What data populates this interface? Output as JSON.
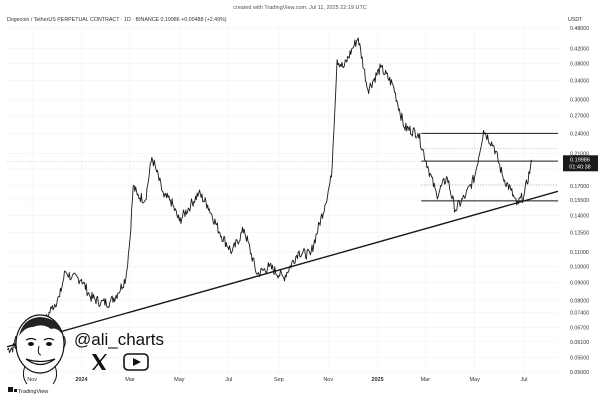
{
  "header": {
    "created_text": "created with TradingView.com, Jul 11, 2025 22:19 UTC",
    "symbol_line": "Dogecoin / TetherUS PERPETUAL CONTRACT · 1D · BINANCE  0.19986  +0.00488 (+2.49%)",
    "currency": "USDT"
  },
  "price_badge": {
    "price": "0.19986",
    "countdown": "01:40:38",
    "color": "#1a1a1a"
  },
  "branding": {
    "handle": "@ali_charts",
    "x_icon": "x-logo-icon",
    "youtube_icon": "youtube-icon",
    "avatar": "cartoon-avatar",
    "tradingview_label": "TradingView"
  },
  "colors": {
    "price_line": "#1a1a1a",
    "trend_line": "#1a1a1a",
    "grid": "#f0f0f0",
    "dashed_level": "#999999"
  },
  "chart_data": {
    "type": "line",
    "title": "Dogecoin / TetherUS PERPETUAL CONTRACT · 1D · BINANCE",
    "y_scale": "log",
    "ylim": [
      0.05,
      0.48
    ],
    "y_ticks": [
      "0.48000",
      "0.42000",
      "0.38000",
      "0.34000",
      "0.30000",
      "0.27000",
      "0.24000",
      "0.21000",
      "0.19000",
      "0.17000",
      "0.15500",
      "0.14000",
      "0.12500",
      "0.11000",
      "0.10000",
      "0.09000",
      "0.08000",
      "0.07400",
      "0.06700",
      "0.06100",
      "0.05500",
      "0.05000"
    ],
    "x_ticks": [
      "Nov",
      "2024",
      "Mar",
      "May",
      "Jul",
      "Sep",
      "Nov",
      "2025",
      "Mar",
      "May",
      "Jul"
    ],
    "x_tick_dates": [
      "2023-11-01",
      "2024-01-01",
      "2024-03-01",
      "2024-05-01",
      "2024-07-01",
      "2024-09-01",
      "2024-11-01",
      "2025-01-01",
      "2025-03-01",
      "2025-05-01",
      "2025-07-01"
    ],
    "series": [
      {
        "points": [
          [
            "2023-10-01",
            0.058
          ],
          [
            "2023-10-20",
            0.06
          ],
          [
            "2023-11-05",
            0.063
          ],
          [
            "2023-11-15",
            0.068
          ],
          [
            "2023-11-25",
            0.076
          ],
          [
            "2023-12-05",
            0.082
          ],
          [
            "2023-12-12",
            0.097
          ],
          [
            "2023-12-20",
            0.093
          ],
          [
            "2024-01-01",
            0.092
          ],
          [
            "2024-01-12",
            0.082
          ],
          [
            "2024-01-25",
            0.079
          ],
          [
            "2024-02-05",
            0.079
          ],
          [
            "2024-02-15",
            0.084
          ],
          [
            "2024-02-25",
            0.093
          ],
          [
            "2024-03-01",
            0.12
          ],
          [
            "2024-03-05",
            0.17
          ],
          [
            "2024-03-10",
            0.16
          ],
          [
            "2024-03-20",
            0.155
          ],
          [
            "2024-03-28",
            0.205
          ],
          [
            "2024-04-02",
            0.19
          ],
          [
            "2024-04-12",
            0.158
          ],
          [
            "2024-04-20",
            0.155
          ],
          [
            "2024-05-01",
            0.135
          ],
          [
            "2024-05-15",
            0.15
          ],
          [
            "2024-05-25",
            0.162
          ],
          [
            "2024-06-05",
            0.15
          ],
          [
            "2024-06-20",
            0.125
          ],
          [
            "2024-07-05",
            0.11
          ],
          [
            "2024-07-20",
            0.128
          ],
          [
            "2024-08-05",
            0.095
          ],
          [
            "2024-08-20",
            0.1
          ],
          [
            "2024-09-07",
            0.093
          ],
          [
            "2024-09-25",
            0.11
          ],
          [
            "2024-10-10",
            0.108
          ],
          [
            "2024-10-28",
            0.15
          ],
          [
            "2024-11-05",
            0.18
          ],
          [
            "2024-11-12",
            0.39
          ],
          [
            "2024-11-20",
            0.37
          ],
          [
            "2024-12-01",
            0.42
          ],
          [
            "2024-12-08",
            0.45
          ],
          [
            "2024-12-20",
            0.32
          ],
          [
            "2025-01-05",
            0.37
          ],
          [
            "2025-01-20",
            0.33
          ],
          [
            "2025-02-03",
            0.25
          ],
          [
            "2025-02-20",
            0.24
          ],
          [
            "2025-03-05",
            0.19
          ],
          [
            "2025-03-15",
            0.16
          ],
          [
            "2025-03-28",
            0.18
          ],
          [
            "2025-04-07",
            0.145
          ],
          [
            "2025-04-20",
            0.16
          ],
          [
            "2025-05-01",
            0.18
          ],
          [
            "2025-05-12",
            0.245
          ],
          [
            "2025-05-25",
            0.22
          ],
          [
            "2025-06-05",
            0.18
          ],
          [
            "2025-06-15",
            0.165
          ],
          [
            "2025-06-22",
            0.15
          ],
          [
            "2025-07-01",
            0.16
          ],
          [
            "2025-07-11",
            0.19986
          ]
        ]
      }
    ],
    "annotations": {
      "trendline": [
        [
          "2023-10-01",
          0.059
        ],
        [
          "2025-08-12",
          0.164
        ]
      ],
      "resistance": 0.24,
      "mid_level": 0.2,
      "support": 0.154,
      "dashed_levels": [
        0.217,
        0.171
      ],
      "box_start": "2025-02-24",
      "box_end": "2025-08-12"
    },
    "current_price": 0.19986,
    "grid": true
  }
}
